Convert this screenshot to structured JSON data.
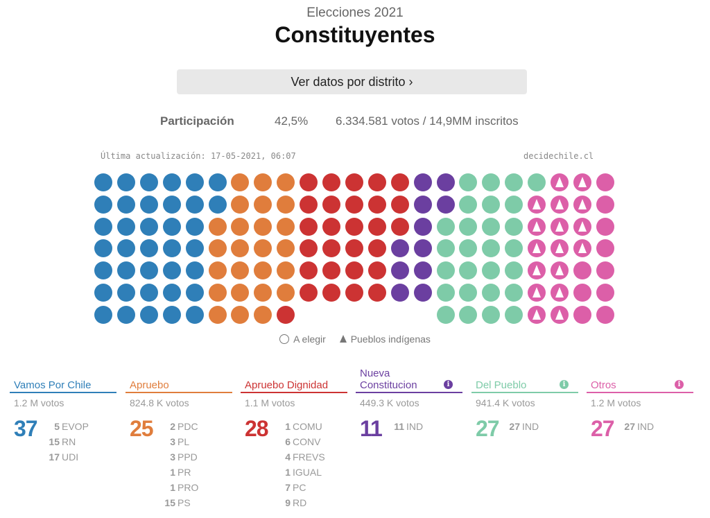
{
  "header": {
    "subtitle": "Elecciones 2021",
    "title": "Constituyentes",
    "district_button": "Ver datos por distrito  ›"
  },
  "participation": {
    "label": "Participación",
    "percent": "42,5%",
    "detail": "6.334.581 votos / 14,9MM inscritos"
  },
  "meta": {
    "updated": "Última actualización: 17-05-2021, 06:07",
    "source": "decidechile.cl"
  },
  "legend": {
    "to_elect": "A elegir",
    "indigenous": "Pueblos indígenas"
  },
  "pacts": [
    {
      "name": "Vamos Por Chile",
      "color": "#2f7fb8",
      "votes": "1.2 M votos",
      "seats": "37",
      "info": false,
      "parties": [
        {
          "n": "5",
          "p": "EVOP"
        },
        {
          "n": "15",
          "p": "RN"
        },
        {
          "n": "17",
          "p": "UDI"
        }
      ]
    },
    {
      "name": "Apruebo",
      "color": "#e07d3c",
      "votes": "824.8 K votos",
      "seats": "25",
      "info": false,
      "parties": [
        {
          "n": "2",
          "p": "PDC"
        },
        {
          "n": "3",
          "p": "PL"
        },
        {
          "n": "3",
          "p": "PPD"
        },
        {
          "n": "1",
          "p": "PR"
        },
        {
          "n": "1",
          "p": "PRO"
        },
        {
          "n": "15",
          "p": "PS"
        }
      ]
    },
    {
      "name": "Apruebo Dignidad",
      "color": "#cc3333",
      "votes": "1.1 M votos",
      "seats": "28",
      "info": false,
      "parties": [
        {
          "n": "1",
          "p": "COMU"
        },
        {
          "n": "6",
          "p": "CONV"
        },
        {
          "n": "4",
          "p": "FREVS"
        },
        {
          "n": "1",
          "p": "IGUAL"
        },
        {
          "n": "7",
          "p": "PC"
        },
        {
          "n": "9",
          "p": "RD"
        }
      ]
    },
    {
      "name": "Nueva Constitucion",
      "color": "#6b3fa0",
      "votes": "449.3 K votos",
      "seats": "11",
      "info": true,
      "parties": [
        {
          "n": "11",
          "p": "IND"
        }
      ]
    },
    {
      "name": "Del Pueblo",
      "color": "#7ecba8",
      "votes": "941.4 K votos",
      "seats": "27",
      "info": true,
      "parties": [
        {
          "n": "27",
          "p": "IND"
        }
      ]
    },
    {
      "name": "Otros",
      "color": "#dc5fa8",
      "votes": "1.2 M votos",
      "seats": "27",
      "info": true,
      "parties": [
        {
          "n": "27",
          "p": "IND"
        }
      ]
    }
  ],
  "seat_grid": {
    "indigenous_seats_in_otros": 17
  }
}
